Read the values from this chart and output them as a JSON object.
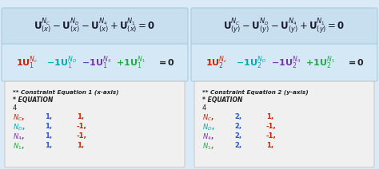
{
  "bg_color": "#daeaf7",
  "panel_top_bg": "#c8dff0",
  "panel_mid_bg": "#d4e8f5",
  "panel_box_bg": "#f0f0f0",
  "panel_box_edge": "#cccccc",
  "left_panel": {
    "constraint_title": "** Constraint Equation 1 (x-axis)",
    "equation_label": "* EQUATION",
    "count": "4",
    "top_eq_left": "$\\mathbf{U}_{(x}$",
    "top_eq_sub": "x",
    "rows": [
      {
        "label": "$N_C$",
        "col2": "1,",
        "col3": "1,",
        "label_color": "#cc2200",
        "col2_color": "#2255cc",
        "col3_color": "#cc2200"
      },
      {
        "label": "$N_D$",
        "col2": "1,",
        "col3": "-1,",
        "label_color": "#00aaaa",
        "col2_color": "#2255cc",
        "col3_color": "#cc2200"
      },
      {
        "label": "$N_4$",
        "col2": "1,",
        "col3": "-1,",
        "label_color": "#7733aa",
        "col2_color": "#2255cc",
        "col3_color": "#cc2200"
      },
      {
        "label": "$N_1$",
        "col2": "1,",
        "col3": "1,",
        "label_color": "#22aa44",
        "col2_color": "#2255cc",
        "col3_color": "#cc2200"
      }
    ],
    "mid_parts": [
      {
        "text": "$\\mathbf{1U}_1^{N_c}$",
        "color": "#cc2200"
      },
      {
        "text": "$\\mathbf{-1U}_1^{N_D}$",
        "color": "#00aaaa"
      },
      {
        "text": "$\\mathbf{-1U}_1^{N_4}$",
        "color": "#7733aa"
      },
      {
        "text": "$\\mathbf{+1U}_1^{N_1}$",
        "color": "#22aa44"
      },
      {
        "text": "$\\mathbf{=0}$",
        "color": "#222222"
      }
    ]
  },
  "right_panel": {
    "constraint_title": "** Constraint Equation 2 (y-axis)",
    "equation_label": "* EQUATION",
    "count": "4",
    "rows": [
      {
        "label": "$N_C$",
        "col2": "2,",
        "col3": "1,",
        "label_color": "#cc2200",
        "col2_color": "#2255cc",
        "col3_color": "#cc2200"
      },
      {
        "label": "$N_D$",
        "col2": "2,",
        "col3": "-1,",
        "label_color": "#00aaaa",
        "col2_color": "#2255cc",
        "col3_color": "#cc2200"
      },
      {
        "label": "$N_4$",
        "col2": "2,",
        "col3": "-1,",
        "label_color": "#7733aa",
        "col2_color": "#2255cc",
        "col3_color": "#cc2200"
      },
      {
        "label": "$N_1$",
        "col2": "2,",
        "col3": "1,",
        "label_color": "#22aa44",
        "col2_color": "#2255cc",
        "col3_color": "#cc2200"
      }
    ],
    "mid_parts": [
      {
        "text": "$\\mathbf{1U}_2^{N_c}$",
        "color": "#cc2200"
      },
      {
        "text": "$\\mathbf{-1U}_2^{N_D}$",
        "color": "#00aaaa"
      },
      {
        "text": "$\\mathbf{-1U}_2^{N_4}$",
        "color": "#7733aa"
      },
      {
        "text": "$\\mathbf{+1U}_2^{N_1}$",
        "color": "#22aa44"
      },
      {
        "text": "$\\mathbf{=0}$",
        "color": "#222222"
      }
    ]
  }
}
